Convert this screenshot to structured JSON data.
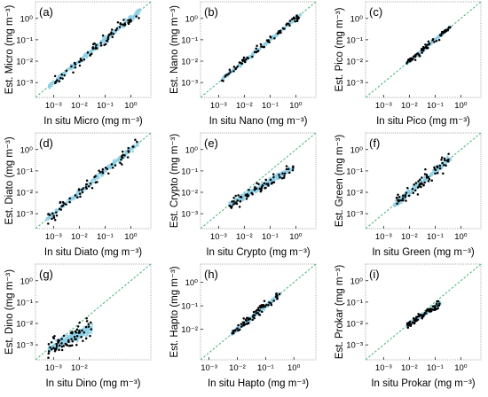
{
  "chart_data": [
    {
      "panel": "(a)",
      "type": "scatter",
      "xlabel": "In situ Micro (mg m⁻³)",
      "ylabel": "Est. Micro (mg m⁻³)",
      "x_ticks": [
        "10⁻³",
        "10⁻²",
        "10⁻¹",
        "10⁰"
      ],
      "y_ticks": [
        "10⁻³",
        "10⁻²",
        "10⁻¹",
        "10⁰"
      ],
      "scale": "log",
      "xlim": [
        0.0002,
        6
      ],
      "ylim": [
        0.0002,
        6
      ],
      "one_to_one_line": true,
      "cloud": {
        "xlog_range": [
          -3.2,
          0.4
        ],
        "slope": 1.0,
        "spread": 0.22
      },
      "colors": {
        "density": "#8fd0e6",
        "outlier": "#000000",
        "line": "#3cb371"
      }
    },
    {
      "panel": "(b)",
      "type": "scatter",
      "xlabel": "In situ Nano (mg m⁻³)",
      "ylabel": "Est. Nano (mg m⁻³)",
      "x_ticks": [
        "10⁻³",
        "10⁻²",
        "10⁻¹",
        "10⁰"
      ],
      "y_ticks": [
        "10⁻³",
        "10⁻²",
        "10⁻¹",
        "10⁰"
      ],
      "scale": "log",
      "xlim": [
        0.0002,
        6
      ],
      "ylim": [
        0.0002,
        6
      ],
      "one_to_one_line": true,
      "cloud": {
        "xlog_range": [
          -2.9,
          0.2
        ],
        "slope": 1.0,
        "spread": 0.12
      },
      "colors": {
        "density": "#8fd0e6",
        "outlier": "#000000",
        "line": "#3cb371"
      }
    },
    {
      "panel": "(c)",
      "type": "scatter",
      "xlabel": "In situ Pico (mg m⁻³)",
      "ylabel": "Est. Pico (mg m⁻³)",
      "x_ticks": [
        "10⁻³",
        "10⁻²",
        "10⁻¹",
        "10⁰"
      ],
      "y_ticks": [
        "10⁻³",
        "10⁻²",
        "10⁻¹",
        "10⁰"
      ],
      "scale": "log",
      "xlim": [
        0.0002,
        6
      ],
      "ylim": [
        0.0002,
        6
      ],
      "one_to_one_line": true,
      "cloud": {
        "xlog_range": [
          -2.1,
          -0.4
        ],
        "slope": 1.0,
        "spread": 0.1
      },
      "colors": {
        "density": "#8fd0e6",
        "outlier": "#000000",
        "line": "#3cb371"
      }
    },
    {
      "panel": "(d)",
      "type": "scatter",
      "xlabel": "In situ Diato (mg m⁻³)",
      "ylabel": "Est. Diato (mg m⁻³)",
      "x_ticks": [
        "10⁻³",
        "10⁻²",
        "10⁻¹",
        "10⁰"
      ],
      "y_ticks": [
        "10⁻³",
        "10⁻²",
        "10⁻¹",
        "10⁰"
      ],
      "scale": "log",
      "xlim": [
        0.0002,
        6
      ],
      "ylim": [
        0.0002,
        6
      ],
      "one_to_one_line": true,
      "cloud": {
        "xlog_range": [
          -3.3,
          0.3
        ],
        "slope": 1.0,
        "spread": 0.22
      },
      "colors": {
        "density": "#8fd0e6",
        "outlier": "#000000",
        "line": "#3cb371"
      }
    },
    {
      "panel": "(e)",
      "type": "scatter",
      "xlabel": "In situ Crypto (mg m⁻³)",
      "ylabel": "Est. Crypto (mg m⁻³)",
      "x_ticks": [
        "10⁻³",
        "10⁻²",
        "10⁻¹",
        "10⁰"
      ],
      "y_ticks": [
        "10⁻³",
        "10⁻²",
        "10⁻¹",
        "10⁰"
      ],
      "scale": "log",
      "xlim": [
        0.0002,
        6
      ],
      "ylim": [
        0.0002,
        6
      ],
      "one_to_one_line": true,
      "cloud": {
        "xlog_range": [
          -2.6,
          -0.1
        ],
        "slope": 0.7,
        "spread": 0.2
      },
      "colors": {
        "density": "#8fd0e6",
        "outlier": "#000000",
        "line": "#3cb371"
      }
    },
    {
      "panel": "(f)",
      "type": "scatter",
      "xlabel": "In situ Green (mg m⁻³)",
      "ylabel": "Est. Green (mg m⁻³)",
      "x_ticks": [
        "10⁻³",
        "10⁻²",
        "10⁻¹",
        "10⁰"
      ],
      "y_ticks": [
        "10⁻³",
        "10⁻²",
        "10⁻¹",
        "10⁰"
      ],
      "scale": "log",
      "xlim": [
        0.0002,
        6
      ],
      "ylim": [
        0.0002,
        6
      ],
      "one_to_one_line": true,
      "cloud": {
        "xlog_range": [
          -2.6,
          -0.4
        ],
        "slope": 1.0,
        "spread": 0.25
      },
      "colors": {
        "density": "#8fd0e6",
        "outlier": "#000000",
        "line": "#3cb371"
      }
    },
    {
      "panel": "(g)",
      "type": "scatter",
      "xlabel": "In situ Dino (mg m⁻³)",
      "ylabel": "Est. Dino (mg m⁻³)",
      "x_ticks": [
        "10⁻³",
        "10⁻²"
      ],
      "y_ticks": [
        "10⁻³",
        "10⁻²",
        "10⁻¹",
        "10⁰"
      ],
      "scale": "log",
      "xlim": [
        0.0002,
        6
      ],
      "ylim": [
        0.0002,
        6
      ],
      "one_to_one_line": true,
      "cloud": {
        "xlog_range": [
          -3.2,
          -1.5
        ],
        "slope": 0.6,
        "spread": 0.35
      },
      "colors": {
        "density": "#8fd0e6",
        "outlier": "#000000",
        "line": "#3cb371"
      }
    },
    {
      "panel": "(h)",
      "type": "scatter",
      "xlabel": "In situ Hapto (mg m⁻³)",
      "ylabel": "Est. Hapto (mg m⁻³)",
      "x_ticks": [
        "10⁻³",
        "10⁻²",
        "10⁻¹",
        "10⁰"
      ],
      "y_ticks": [
        "10⁻²",
        "10⁻¹",
        "10⁰"
      ],
      "scale": "log",
      "xlim": [
        0.0005,
        6
      ],
      "ylim": [
        0.0005,
        6
      ],
      "one_to_one_line": true,
      "cloud": {
        "xlog_range": [
          -2.2,
          -0.5
        ],
        "slope": 1.0,
        "spread": 0.14
      },
      "colors": {
        "density": "#8fd0e6",
        "outlier": "#000000",
        "line": "#3cb371"
      }
    },
    {
      "panel": "(i)",
      "type": "scatter",
      "xlabel": "In situ Prokar (mg m⁻³)",
      "ylabel": "Est. Prokar (mg m⁻³)",
      "x_ticks": [
        "10⁻³",
        "10⁻²",
        "10⁻¹",
        "10⁰"
      ],
      "y_ticks": [
        "10⁻³",
        "10⁻²",
        "10⁻¹",
        "10⁰"
      ],
      "scale": "log",
      "xlim": [
        0.0002,
        6
      ],
      "ylim": [
        0.0002,
        6
      ],
      "one_to_one_line": true,
      "cloud": {
        "xlog_range": [
          -2.1,
          -0.8
        ],
        "slope": 0.8,
        "spread": 0.12
      },
      "colors": {
        "density": "#8fd0e6",
        "outlier": "#000000",
        "line": "#3cb371"
      }
    }
  ]
}
